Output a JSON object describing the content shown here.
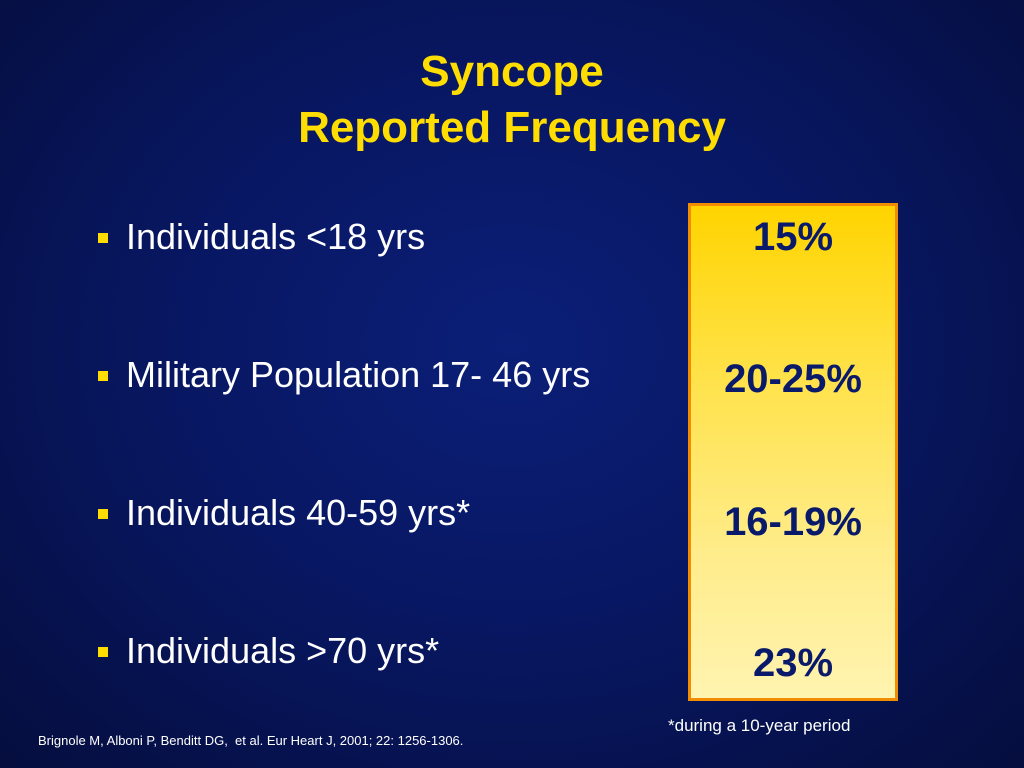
{
  "slide": {
    "title_line1": "Syncope",
    "title_line2": "Reported Frequency",
    "bullets": [
      {
        "label": "Individuals <18 yrs",
        "frequency": "15%"
      },
      {
        "label": "Military Population 17- 46 yrs",
        "frequency": "20-25%"
      },
      {
        "label": "Individuals 40-59 yrs*",
        "frequency": "16-19%"
      },
      {
        "label": "Individuals >70 yrs*",
        "frequency": "23%"
      }
    ],
    "footnote": "*during a 10-year period",
    "citation": "Brignole M, Alboni P, Benditt DG,  et al. Eur Heart J, 2001; 22: 1256-1306."
  },
  "colors": {
    "background": "#081763",
    "title": "#ffdd00",
    "bullet_marker": "#ffdd00",
    "box_border": "#f28c00",
    "box_fill_top": "#ffd400",
    "box_fill_bottom": "#fff4b0",
    "frequency_text": "#0a1a6a"
  }
}
